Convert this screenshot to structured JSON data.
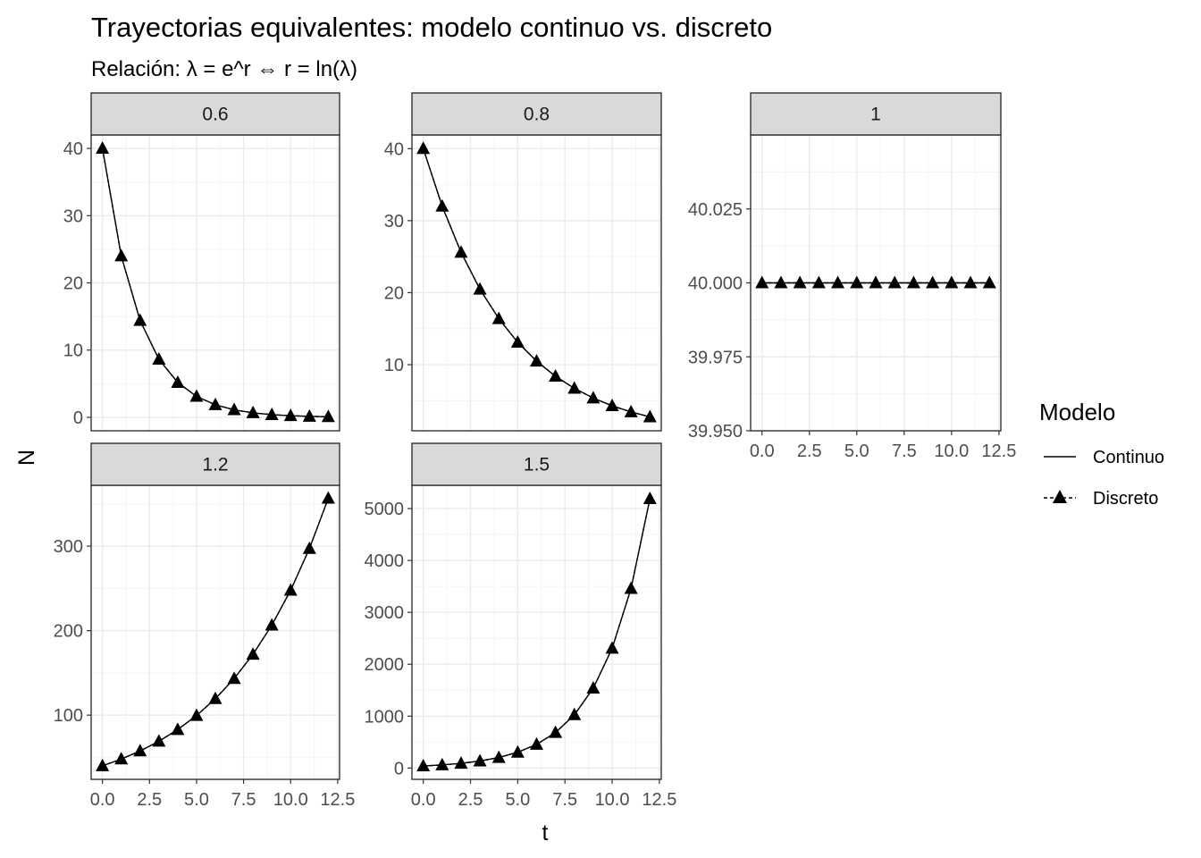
{
  "chart_data": {
    "type": "line",
    "title": "Trayectorias equivalentes: modelo continuo vs. discreto",
    "subtitle": "Relación: λ = e^r  ⇔  r = ln(λ)",
    "xlabel": "t",
    "ylabel": "N",
    "grid": true,
    "legend": {
      "title": "Modelo",
      "placement": "right",
      "entries": [
        {
          "label": "Continuo",
          "linetype": "solid",
          "marker": "none"
        },
        {
          "label": "Discreto",
          "linetype": "dashed",
          "marker": "triangle"
        }
      ]
    },
    "x": [
      0,
      1,
      2,
      3,
      4,
      5,
      6,
      7,
      8,
      9,
      10,
      11,
      12
    ],
    "colors": {
      "line": "#000000",
      "strip_bg": "#d9d9d9",
      "grid_major": "#ebebeb",
      "grid_minor": "#f5f5f5"
    },
    "panels": [
      {
        "label": "0.6",
        "lambda": 0.6,
        "xlim": [
          -0.6,
          12.6
        ],
        "ylim": [
          -2.0,
          42.0
        ],
        "x_ticks": [
          "0.0",
          "2.5",
          "5.0",
          "7.5",
          "10.0",
          "12.5"
        ],
        "y_ticks": [
          "0",
          "10",
          "20",
          "30",
          "40"
        ],
        "x_ticks_shown": false,
        "series": [
          {
            "name": "Continuo",
            "values": [
              40,
              24,
              14.4,
              8.64,
              5.18,
              3.11,
              1.87,
              1.12,
              0.67,
              0.4,
              0.24,
              0.15,
              0.09
            ]
          },
          {
            "name": "Discreto",
            "values": [
              40,
              24,
              14.4,
              8.64,
              5.18,
              3.11,
              1.87,
              1.12,
              0.67,
              0.4,
              0.24,
              0.15,
              0.09
            ]
          }
        ]
      },
      {
        "label": "0.8",
        "lambda": 0.8,
        "xlim": [
          -0.6,
          12.6
        ],
        "ylim": [
          0.82,
          41.9
        ],
        "x_ticks": [
          "0.0",
          "2.5",
          "5.0",
          "7.5",
          "10.0",
          "12.5"
        ],
        "y_ticks": [
          "10",
          "20",
          "30",
          "40"
        ],
        "x_ticks_shown": false,
        "series": [
          {
            "name": "Continuo",
            "values": [
              40,
              32,
              25.6,
              20.48,
              16.38,
              13.11,
              10.49,
              8.39,
              6.71,
              5.37,
              4.29,
              3.44,
              2.75
            ]
          },
          {
            "name": "Discreto",
            "values": [
              40,
              32,
              25.6,
              20.48,
              16.38,
              13.11,
              10.49,
              8.39,
              6.71,
              5.37,
              4.29,
              3.44,
              2.75
            ]
          }
        ]
      },
      {
        "label": "1",
        "lambda": 1,
        "xlim": [
          -0.6,
          12.6
        ],
        "ylim": [
          39.95,
          40.05
        ],
        "x_ticks": [
          "0.0",
          "2.5",
          "5.0",
          "7.5",
          "10.0",
          "12.5"
        ],
        "y_ticks": [
          "39.950",
          "39.975",
          "40.000",
          "40.025"
        ],
        "x_ticks_shown": true,
        "series": [
          {
            "name": "Continuo",
            "values": [
              40,
              40,
              40,
              40,
              40,
              40,
              40,
              40,
              40,
              40,
              40,
              40,
              40
            ]
          },
          {
            "name": "Discreto",
            "values": [
              40,
              40,
              40,
              40,
              40,
              40,
              40,
              40,
              40,
              40,
              40,
              40,
              40
            ]
          }
        ]
      },
      {
        "label": "1.2",
        "lambda": 1.2,
        "xlim": [
          -0.6,
          12.6
        ],
        "ylim": [
          24,
          372
        ],
        "x_ticks": [
          "0.0",
          "2.5",
          "5.0",
          "7.5",
          "10.0",
          "12.5"
        ],
        "y_ticks": [
          "100",
          "200",
          "300"
        ],
        "x_ticks_shown": true,
        "series": [
          {
            "name": "Continuo",
            "values": [
              40,
              48,
              57.6,
              69.1,
              82.9,
              99.5,
              119.4,
              143.3,
              172.0,
              206.4,
              247.7,
              297.2,
              356.6
            ]
          },
          {
            "name": "Discreto",
            "values": [
              40,
              48,
              57.6,
              69.1,
              82.9,
              99.5,
              119.4,
              143.3,
              172.0,
              206.4,
              247.7,
              297.2,
              356.6
            ]
          }
        ]
      },
      {
        "label": "1.5",
        "lambda": 1.5,
        "xlim": [
          -0.6,
          12.6
        ],
        "ylim": [
          -218,
          5448
        ],
        "x_ticks": [
          "0.0",
          "2.5",
          "5.0",
          "7.5",
          "10.0",
          "12.5"
        ],
        "y_ticks": [
          "0",
          "1000",
          "2000",
          "3000",
          "4000",
          "5000"
        ],
        "x_ticks_shown": true,
        "series": [
          {
            "name": "Continuo",
            "values": [
              40,
              60,
              90,
              135,
              202.5,
              303.8,
              455.6,
              683.4,
              1025.2,
              1537.7,
              2306.6,
              3459.9,
              5189.8
            ]
          },
          {
            "name": "Discreto",
            "values": [
              40,
              60,
              90,
              135,
              202.5,
              303.8,
              455.6,
              683.4,
              1025.2,
              1537.7,
              2306.6,
              3459.9,
              5189.8
            ]
          }
        ]
      }
    ]
  }
}
